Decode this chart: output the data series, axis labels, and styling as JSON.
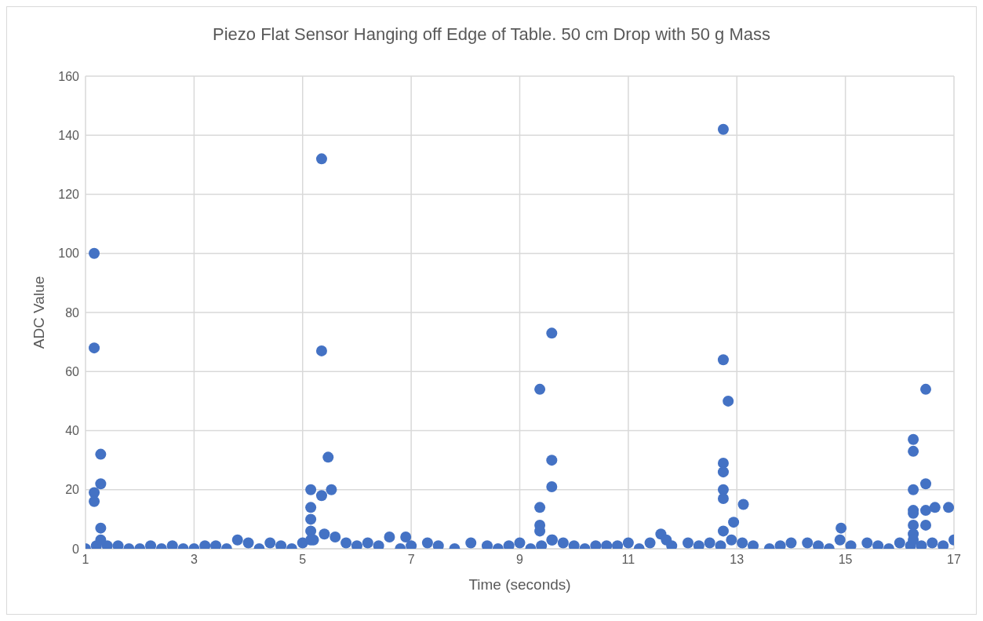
{
  "chart_data": {
    "type": "scatter",
    "title": "Piezo Flat Sensor Hanging off Edge of Table. 50 cm Drop with 50 g Mass",
    "xlabel": "Time (seconds)",
    "ylabel": "ADC Value",
    "xlim": [
      1,
      17
    ],
    "xticks": [
      1,
      3,
      5,
      7,
      9,
      11,
      13,
      15,
      17
    ],
    "ylim": [
      0,
      160
    ],
    "yticks": [
      0,
      20,
      40,
      60,
      80,
      100,
      120,
      140,
      160
    ],
    "grid": true,
    "marker": "circle",
    "series": [
      {
        "color": "#4472c4",
        "x": [
          1.0,
          1.2,
          1.4,
          1.6,
          1.8,
          2.0,
          2.2,
          2.4,
          2.6,
          2.8,
          3.0,
          3.2,
          3.4,
          3.6,
          3.8,
          4.0,
          4.2,
          4.4,
          4.6,
          4.8,
          5.0,
          5.2,
          5.4,
          5.6,
          5.8,
          6.0,
          6.2,
          6.4,
          6.6,
          6.8,
          6.9,
          7.0,
          7.3,
          7.5,
          7.8,
          8.1,
          8.4,
          8.6,
          8.8,
          9.0,
          9.2,
          9.4,
          9.6,
          9.8,
          10.0,
          10.2,
          10.4,
          10.6,
          10.8,
          11.0,
          11.2,
          11.4,
          11.6,
          11.7,
          11.8,
          12.1,
          12.3,
          12.5,
          12.7,
          12.9,
          13.1,
          13.3,
          13.6,
          13.8,
          14.0,
          14.3,
          14.5,
          14.7,
          14.9,
          15.1,
          15.4,
          15.6,
          15.8,
          16.0,
          16.2,
          16.4,
          16.6,
          16.8,
          17.0,
          1.16,
          1.16,
          1.16,
          1.16,
          1.28,
          1.28,
          1.28,
          1.28,
          5.35,
          5.35,
          5.35,
          5.15,
          5.15,
          5.15,
          5.15,
          5.15,
          5.47,
          5.53,
          9.37,
          9.37,
          9.37,
          9.37,
          9.59,
          9.59,
          9.59,
          9.59,
          12.75,
          12.75,
          12.75,
          12.75,
          12.75,
          12.75,
          12.75,
          12.84,
          13.12,
          12.94,
          16.25,
          16.25,
          16.25,
          16.25,
          16.25,
          16.25,
          16.25,
          16.25,
          16.48,
          16.48,
          16.48,
          16.48,
          16.65,
          16.9,
          14.92
        ],
        "values": [
          0,
          1,
          1,
          1,
          0,
          0,
          1,
          0,
          1,
          0,
          0,
          1,
          1,
          0,
          3,
          2,
          0,
          2,
          1,
          0,
          2,
          3,
          5,
          4,
          2,
          1,
          2,
          1,
          4,
          0,
          4,
          1,
          2,
          1,
          0,
          2,
          1,
          0,
          1,
          2,
          0,
          1,
          3,
          2,
          1,
          0,
          1,
          1,
          1,
          2,
          0,
          2,
          5,
          3,
          1,
          2,
          1,
          2,
          1,
          3,
          2,
          1,
          0,
          1,
          2,
          2,
          1,
          0,
          3,
          1,
          2,
          1,
          0,
          2,
          1,
          1,
          2,
          1,
          3,
          100,
          68,
          19,
          16,
          32,
          22,
          7,
          3,
          132,
          67,
          18,
          20,
          14,
          10,
          6,
          3,
          31,
          20,
          54,
          14,
          8,
          6,
          73,
          30,
          21,
          3,
          142,
          64,
          29,
          26,
          20,
          17,
          6,
          50,
          15,
          9,
          37,
          33,
          20,
          13,
          12,
          8,
          5,
          3,
          54,
          22,
          13,
          8,
          14,
          14,
          7
        ]
      }
    ]
  }
}
